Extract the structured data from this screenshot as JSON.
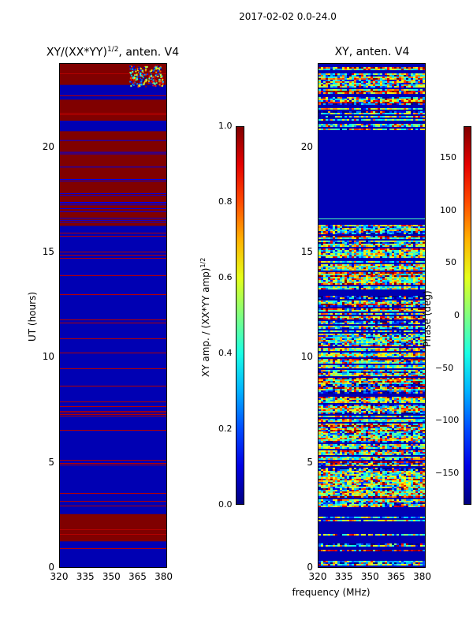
{
  "figure_title": "2017-02-02 0.0-24.0",
  "chart_data": [
    {
      "type": "heatmap",
      "title": "XY/(XX*YY)^1/2, anten. V4",
      "title_base": "XY/(XX*YY)",
      "title_sup": "1/2",
      "title_tail": ", anten. V4",
      "xlabel": "",
      "ylabel": "UT (hours)",
      "xlim": [
        320,
        382
      ],
      "ylim": [
        0,
        24
      ],
      "xticks": [
        "320",
        "335",
        "350",
        "365",
        "380"
      ],
      "yticks": [
        "0",
        "5",
        "10",
        "15",
        "20"
      ],
      "colorbar": {
        "label": "XY amp. / (XX*YY amp)",
        "label_sup": "1/2",
        "range": [
          0.0,
          1.0
        ],
        "ticks": [
          "0.0",
          "0.2",
          "0.4",
          "0.6",
          "0.8",
          "1.0"
        ],
        "colormap": "jet"
      },
      "description_bands": [
        {
          "from": 0.0,
          "to": 0.3,
          "value": 0.05
        },
        {
          "from": 1.3,
          "to": 2.6,
          "value": 1.0
        },
        {
          "from": 2.6,
          "to": 2.8,
          "value": 0.05
        },
        {
          "from": 16.3,
          "to": 20.8,
          "value": 1.0
        },
        {
          "from": 21.3,
          "to": 22.3,
          "value": 1.0
        },
        {
          "from": 23.0,
          "to": 24.0,
          "value": 1.0
        }
      ]
    },
    {
      "type": "heatmap",
      "title": "XY, anten. V4",
      "xlabel": "frequency (MHz)",
      "ylabel": "",
      "xlim": [
        320,
        382
      ],
      "ylim": [
        0,
        24
      ],
      "xticks": [
        "320",
        "335",
        "350",
        "365",
        "380"
      ],
      "yticks": [
        "0",
        "5",
        "10",
        "15",
        "20"
      ],
      "colorbar": {
        "label": "Phase (deg)",
        "range": [
          -180,
          180
        ],
        "ticks": [
          "−150",
          "−100",
          "−50",
          "0",
          "50",
          "100",
          "150"
        ],
        "colormap": "jet"
      }
    }
  ]
}
